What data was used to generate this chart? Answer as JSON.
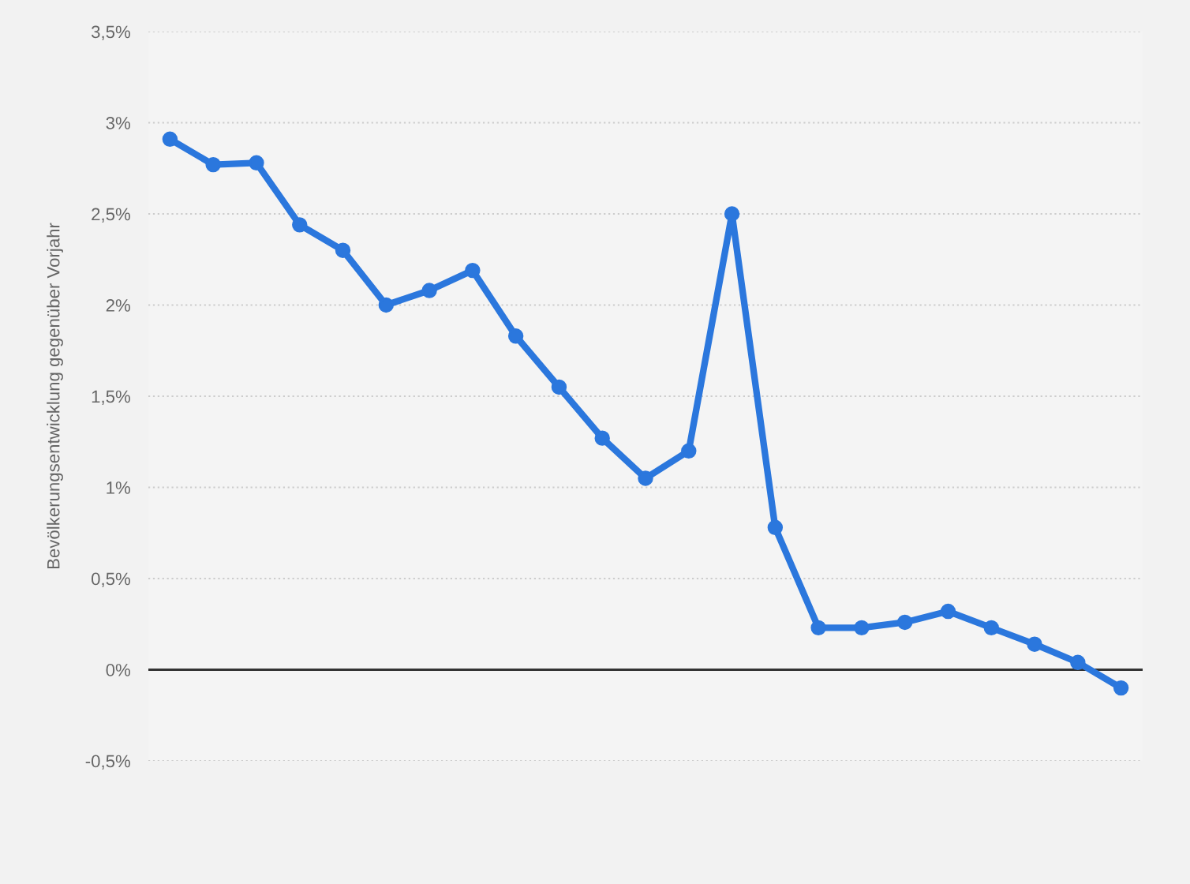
{
  "chart_data": {
    "type": "line",
    "ylabel": "Bevölkerungsentwicklung gegenüber Vorjahr",
    "categories": [
      null,
      null,
      null,
      null,
      null,
      null,
      null,
      null,
      null,
      null,
      null,
      null,
      null,
      null,
      null,
      null,
      null,
      null,
      null,
      null,
      null,
      null,
      null
    ],
    "series": [
      {
        "color": "#2b77dd",
        "values": [
          2.91,
          2.77,
          2.78,
          2.44,
          2.3,
          2.0,
          2.08,
          2.19,
          1.83,
          1.55,
          1.27,
          1.05,
          1.2,
          2.5,
          0.78,
          0.23,
          0.23,
          0.26,
          0.32,
          0.23,
          0.14,
          0.04,
          -0.1
        ]
      }
    ],
    "ylim": [
      -0.5,
      3.5
    ],
    "yticks": [
      {
        "value": -0.5,
        "label": "-0,5%"
      },
      {
        "value": 0,
        "label": "0%"
      },
      {
        "value": 0.5,
        "label": "0,5%"
      },
      {
        "value": 1,
        "label": "1%"
      },
      {
        "value": 1.5,
        "label": "1,5%"
      },
      {
        "value": 2,
        "label": "2%"
      },
      {
        "value": 2.5,
        "label": "2,5%"
      },
      {
        "value": 3,
        "label": "3%"
      },
      {
        "value": 3.5,
        "label": "3,5%"
      }
    ],
    "ref_lines": [
      {
        "axis": "y",
        "value": 0,
        "color": "#333333"
      }
    ],
    "grid": "y",
    "marker": "circle",
    "line_style": "solid",
    "legend": false,
    "tick_labels": "y"
  }
}
